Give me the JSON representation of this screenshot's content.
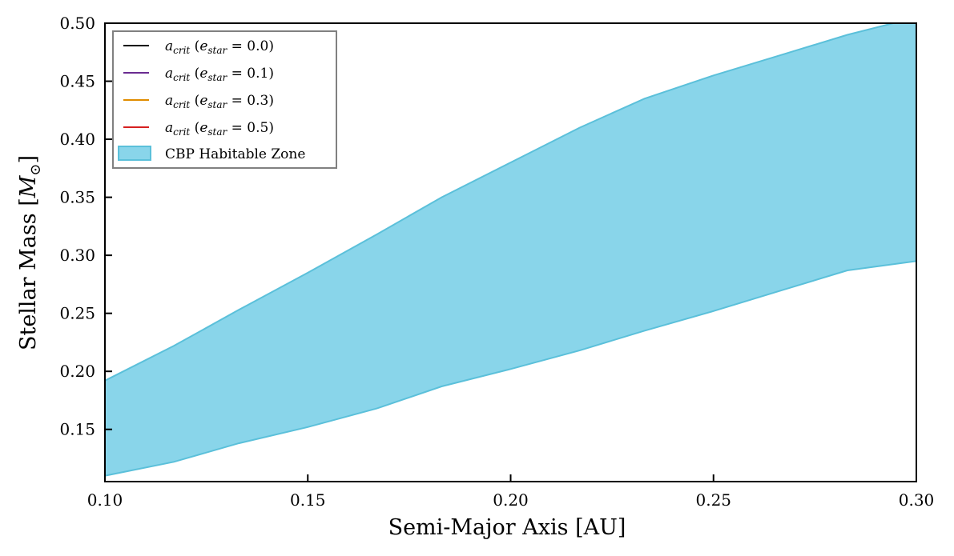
{
  "chart_data": {
    "type": "area",
    "xlabel": "Semi-Major Axis [AU]",
    "ylabel_text": "Stellar Mass [",
    "ylabel_symbol": "M",
    "ylabel_subscript": "⊙",
    "ylabel_close": "]",
    "xlim": [
      0.1,
      0.3
    ],
    "ylim": [
      0.105,
      0.5
    ],
    "xticks": [
      "0.10",
      "0.15",
      "0.20",
      "0.25",
      "0.30"
    ],
    "yticks": [
      "0.15",
      "0.20",
      "0.25",
      "0.30",
      "0.35",
      "0.40",
      "0.45",
      "0.50"
    ],
    "grid": false,
    "legend_position": "top-left",
    "series": [
      {
        "name": "a_crit (e_star = 0.0)",
        "label_main": "a",
        "label_sub": "crit",
        "label_ecc": "0.0",
        "color": "#000000",
        "values": []
      },
      {
        "name": "a_crit (e_star = 0.1)",
        "label_main": "a",
        "label_sub": "crit",
        "label_ecc": "0.1",
        "color": "#6a2c91",
        "values": []
      },
      {
        "name": "a_crit (e_star = 0.3)",
        "label_main": "a",
        "label_sub": "crit",
        "label_ecc": "0.3",
        "color": "#e08c00",
        "values": []
      },
      {
        "name": "a_crit (e_star = 0.5)",
        "label_main": "a",
        "label_sub": "crit",
        "label_ecc": "0.5",
        "color": "#d62020",
        "values": []
      }
    ],
    "habitable_zone": {
      "name": "CBP Habitable Zone",
      "fill_color": "#89d5ea",
      "edge_color": "#5bc0da",
      "x": [
        0.1,
        0.117,
        0.133,
        0.15,
        0.167,
        0.183,
        0.2,
        0.217,
        0.233,
        0.25,
        0.267,
        0.283,
        0.3
      ],
      "upper": [
        0.192,
        0.222,
        0.253,
        0.285,
        0.318,
        0.35,
        0.38,
        0.41,
        0.435,
        0.455,
        0.473,
        0.49,
        0.505
      ],
      "lower": [
        0.11,
        0.122,
        0.138,
        0.152,
        0.168,
        0.187,
        0.202,
        0.218,
        0.235,
        0.252,
        0.27,
        0.287,
        0.295
      ]
    }
  }
}
